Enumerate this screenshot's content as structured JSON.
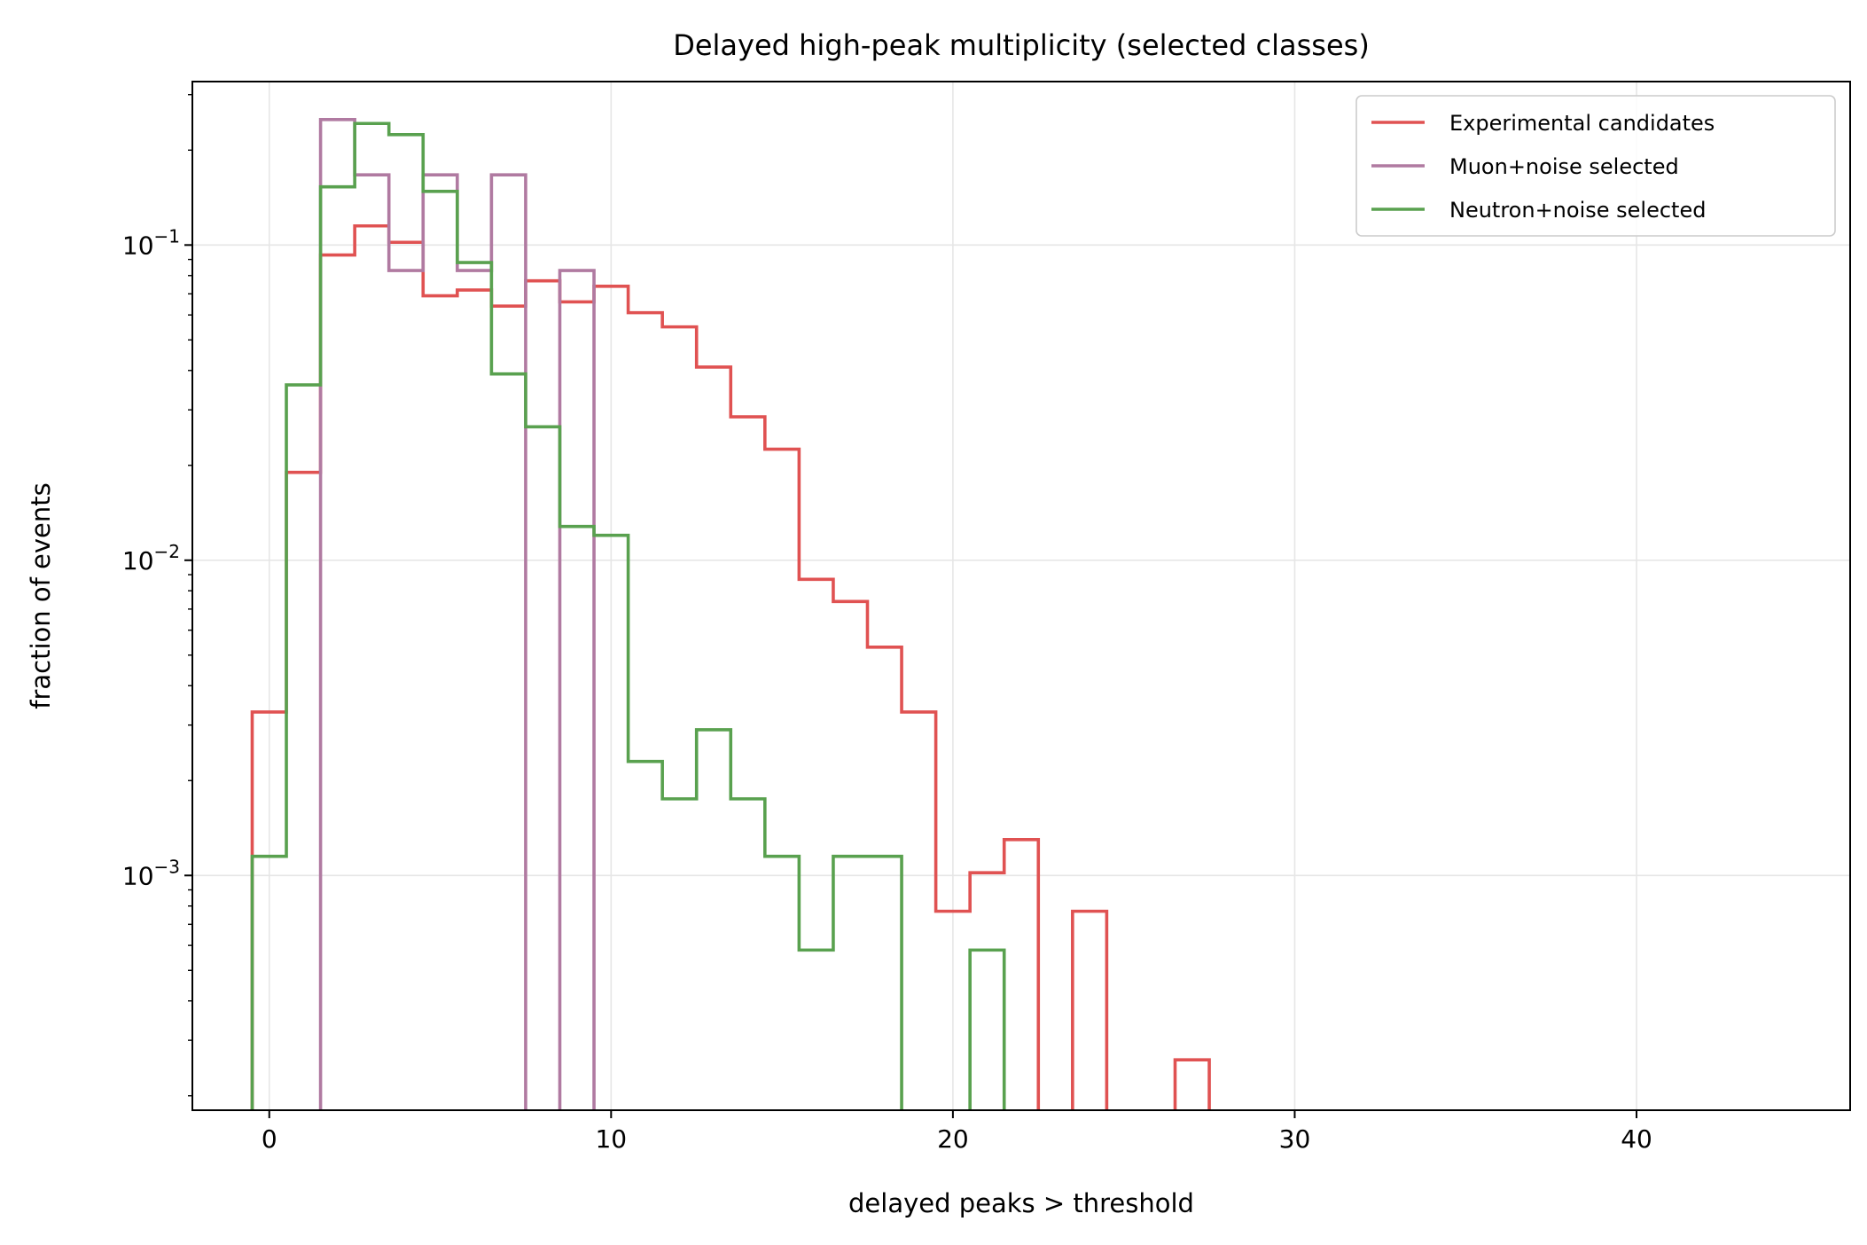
{
  "chart_data": {
    "type": "line",
    "drawstyle": "step-histogram",
    "title": "Delayed high-peak multiplicity (selected classes)",
    "xlabel": "delayed peaks > threshold",
    "ylabel": "fraction of events",
    "xlim": [
      -2.25,
      46.25
    ],
    "ylim": [
      0.00018,
      0.33
    ],
    "yscale": "log",
    "grid": true,
    "legend_position": "top-right",
    "xticks": [
      {
        "value": 0,
        "label": "0"
      },
      {
        "value": 10,
        "label": "10"
      },
      {
        "value": 20,
        "label": "20"
      },
      {
        "value": 30,
        "label": "30"
      },
      {
        "value": 40,
        "label": "40"
      }
    ],
    "yticks": [
      {
        "value": 0.1,
        "base": "10",
        "exponent": "−1"
      },
      {
        "value": 0.01,
        "base": "10",
        "exponent": "−2"
      },
      {
        "value": 0.001,
        "base": "10",
        "exponent": "−3"
      }
    ],
    "bin_edges": [
      -0.5,
      0.5,
      1.5,
      2.5,
      3.5,
      4.5,
      5.5,
      6.5,
      7.5,
      8.5,
      9.5,
      10.5,
      11.5,
      12.5,
      13.5,
      14.5,
      15.5,
      16.5,
      17.5,
      18.5,
      19.5,
      20.5,
      21.5,
      22.5,
      23.5,
      24.5,
      25.5,
      26.5,
      27.5,
      28.5,
      29.5,
      30.5,
      31.5,
      32.5,
      33.5,
      34.5,
      35.5,
      36.5,
      37.5,
      38.5,
      39.5,
      40.5,
      41.5,
      42.5,
      43.5,
      44.5,
      45.5
    ],
    "series": [
      {
        "name": "Experimental candidates",
        "color": "#e05252",
        "values": [
          0.0033,
          0.019,
          0.093,
          0.115,
          0.102,
          0.069,
          0.072,
          0.064,
          0.077,
          0.066,
          0.074,
          0.061,
          0.055,
          0.041,
          0.0285,
          0.0225,
          0.0087,
          0.0074,
          0.0053,
          0.0033,
          0.00077,
          0.00102,
          0.0013,
          0,
          0.00077,
          0,
          0,
          0.00026,
          0,
          0,
          0,
          0,
          0,
          0,
          0,
          0,
          0,
          0,
          0,
          0,
          0,
          0,
          0,
          0,
          0,
          0
        ]
      },
      {
        "name": "Muon+noise selected",
        "color": "#b07aa1",
        "values": [
          0,
          0,
          0.25,
          0.167,
          0.083,
          0.167,
          0.083,
          0.167,
          0,
          0.083,
          0,
          0,
          0,
          0,
          0,
          0,
          0,
          0,
          0,
          0,
          0,
          0,
          0,
          0,
          0,
          0,
          0,
          0,
          0,
          0,
          0,
          0,
          0,
          0,
          0,
          0,
          0,
          0,
          0,
          0,
          0,
          0,
          0,
          0,
          0,
          0
        ]
      },
      {
        "name": "Neutron+noise selected",
        "color": "#59a14f",
        "values": [
          0.00115,
          0.036,
          0.153,
          0.243,
          0.224,
          0.148,
          0.088,
          0.039,
          0.0265,
          0.0128,
          0.012,
          0.0023,
          0.00175,
          0.0029,
          0.00175,
          0.00115,
          0.00058,
          0.00115,
          0.00115,
          0,
          0,
          0.00058,
          0,
          0,
          0,
          0,
          0,
          0,
          0,
          0,
          0,
          0,
          0,
          0,
          0,
          0,
          0,
          0,
          0,
          0,
          0,
          0,
          0,
          0,
          0,
          0
        ]
      }
    ]
  }
}
